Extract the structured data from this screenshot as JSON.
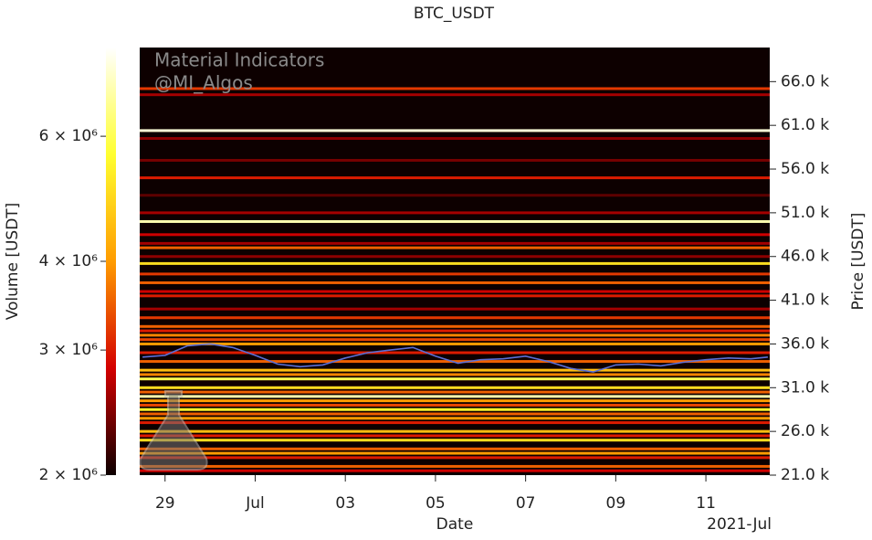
{
  "chart_data": {
    "type": "heatmap",
    "title": "BTC_USDT",
    "xlabel": "Date",
    "ylabel": "Price [USDT]",
    "colorbar_label": "Volume [USDT]",
    "annotations": [
      "Material Indicators",
      "@MI_Algos"
    ],
    "x_offset_label": "2021-Jul",
    "xlim": [
      "2021-06-28T10:30",
      "2021-07-12T10:00"
    ],
    "xticks": [
      {
        "value": "2021-06-29T00:00",
        "label": "29"
      },
      {
        "value": "2021-07-01T00:00",
        "label": "Jul"
      },
      {
        "value": "2021-07-03T00:00",
        "label": "03"
      },
      {
        "value": "2021-07-05T00:00",
        "label": "05"
      },
      {
        "value": "2021-07-07T00:00",
        "label": "07"
      },
      {
        "value": "2021-07-09T00:00",
        "label": "09"
      },
      {
        "value": "2021-07-11T00:00",
        "label": "11"
      }
    ],
    "ylim": [
      21000,
      69900
    ],
    "yticks": [
      {
        "value": 21000,
        "label": "21.0 k"
      },
      {
        "value": 26000,
        "label": "26.0 k"
      },
      {
        "value": 31000,
        "label": "31.0 k"
      },
      {
        "value": 36000,
        "label": "36.0 k"
      },
      {
        "value": 41000,
        "label": "41.0 k"
      },
      {
        "value": 46000,
        "label": "46.0 k"
      },
      {
        "value": 51000,
        "label": "51.0 k"
      },
      {
        "value": 56000,
        "label": "56.0 k"
      },
      {
        "value": 61000,
        "label": "61.0 k"
      },
      {
        "value": 66000,
        "label": "66.0 k"
      }
    ],
    "clim": [
      2000000,
      8000000
    ],
    "color_scale": "log",
    "cticks": [
      {
        "value": 2000000,
        "label": "2 × 10⁶"
      },
      {
        "value": 3000000,
        "label": "3 × 10⁶"
      },
      {
        "value": 4000000,
        "label": "4 × 10⁶"
      },
      {
        "value": 6000000,
        "label": "6 × 10⁶"
      }
    ],
    "colormap": [
      "#0d0000",
      "#d40000",
      "#ff9c00",
      "#ffff30",
      "#ffffff"
    ],
    "background": "#0d0000",
    "levels": {
      "price": [
        65200,
        64500,
        60400,
        59500,
        57000,
        55000,
        53000,
        51000,
        50000,
        48500,
        47500,
        47000,
        46000,
        45200,
        44000,
        43000,
        42000,
        41500,
        40000,
        39000,
        38000,
        37500,
        37000,
        36500,
        36000,
        35000,
        34000,
        33000,
        32500,
        32000,
        31000,
        30500,
        30000,
        29500,
        29000,
        28500,
        28000,
        27500,
        27000,
        26000,
        25500,
        25000,
        24000,
        23500,
        23000,
        22000,
        21500
      ],
      "volume": [
        3200000,
        2600000,
        7500000,
        2500000,
        2400000,
        3000000,
        2300000,
        2600000,
        7000000,
        2800000,
        2600000,
        3500000,
        2500000,
        5000000,
        3200000,
        3500000,
        2800000,
        3000000,
        2600000,
        3200000,
        3500000,
        3000000,
        3800000,
        3300000,
        4000000,
        3000000,
        3500000,
        4500000,
        3800000,
        6000000,
        5000000,
        3500000,
        7000000,
        4000000,
        3300000,
        5500000,
        3500000,
        4000000,
        3000000,
        4500000,
        3000000,
        5000000,
        3500000,
        4000000,
        3000000,
        3500000,
        2800000
      ]
    },
    "series": [
      {
        "name": "Price",
        "color": "#5b6fd6",
        "x": [
          "2021-06-28T12:00",
          "2021-06-29T00:00",
          "2021-06-29T12:00",
          "2021-06-30T00:00",
          "2021-06-30T12:00",
          "2021-07-01T00:00",
          "2021-07-01T12:00",
          "2021-07-02T00:00",
          "2021-07-02T12:00",
          "2021-07-03T00:00",
          "2021-07-03T12:00",
          "2021-07-04T00:00",
          "2021-07-04T12:00",
          "2021-07-05T00:00",
          "2021-07-05T12:00",
          "2021-07-06T00:00",
          "2021-07-06T12:00",
          "2021-07-07T00:00",
          "2021-07-07T12:00",
          "2021-07-08T00:00",
          "2021-07-08T12:00",
          "2021-07-09T00:00",
          "2021-07-09T12:00",
          "2021-07-10T00:00",
          "2021-07-10T12:00",
          "2021-07-11T00:00",
          "2021-07-11T12:00",
          "2021-07-12T00:00",
          "2021-07-12T09:00"
        ],
        "values": [
          34500,
          34700,
          35800,
          36000,
          35600,
          34700,
          33700,
          33400,
          33600,
          34400,
          35000,
          35300,
          35600,
          34600,
          33800,
          34200,
          34300,
          34600,
          34000,
          33200,
          32800,
          33600,
          33700,
          33500,
          33900,
          34200,
          34400,
          34300,
          34500
        ]
      }
    ]
  }
}
